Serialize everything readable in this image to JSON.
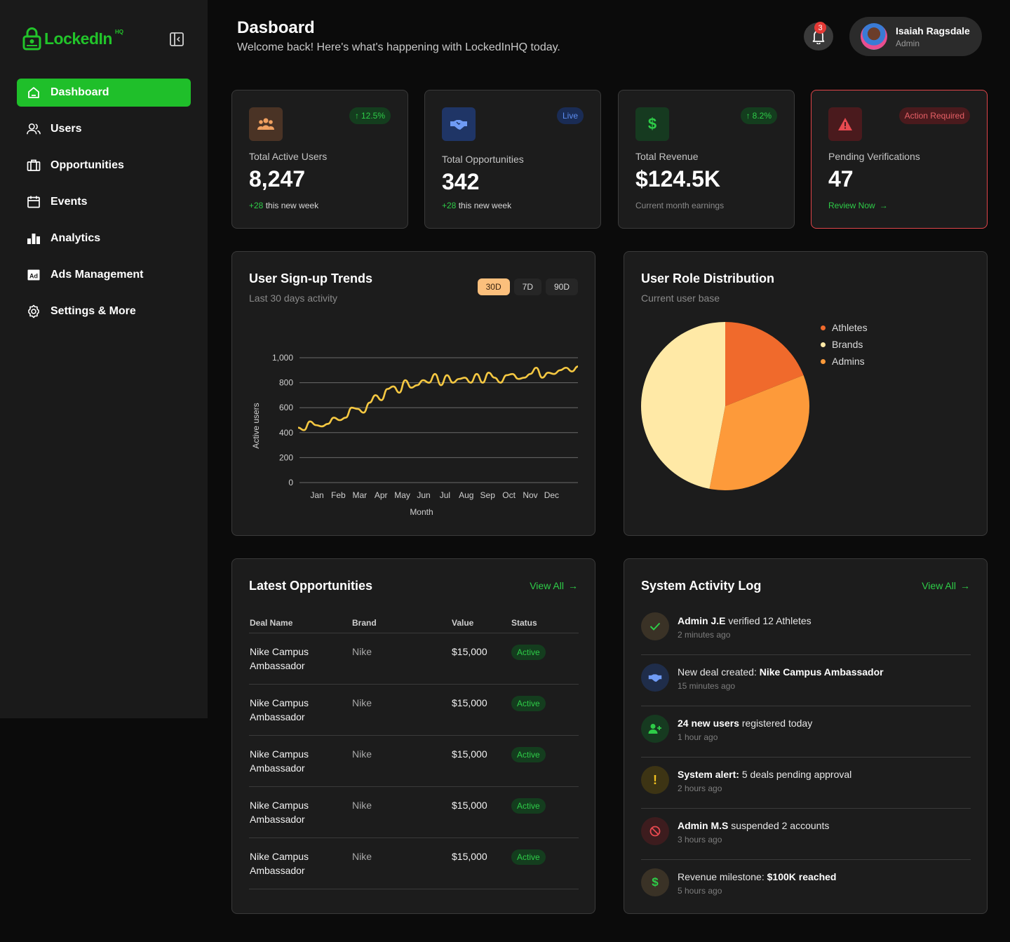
{
  "app": {
    "logo_text": "LockedIn",
    "logo_sup": "HQ"
  },
  "sidebar": {
    "items": [
      {
        "label": "Dashboard",
        "icon": "home-icon"
      },
      {
        "label": "Users",
        "icon": "users-icon"
      },
      {
        "label": "Opportunities",
        "icon": "briefcase-icon"
      },
      {
        "label": "Events",
        "icon": "calendar-icon"
      },
      {
        "label": "Analytics",
        "icon": "bar-chart-icon"
      },
      {
        "label": "Ads Management",
        "icon": "ad-icon"
      },
      {
        "label": "Settings & More",
        "icon": "gear-icon"
      }
    ]
  },
  "header": {
    "title": "Dasboard",
    "subtitle": "Welcome back! Here's what's happening with LockedInHQ today.",
    "notification_count": "3",
    "user_name": "Isaiah Ragsdale",
    "user_role": "Admin"
  },
  "stats": [
    {
      "label": "Total Active Users",
      "value": "8,247",
      "badge": "12.5%",
      "foot_highlight": "+28",
      "foot_text": " this new week"
    },
    {
      "label": "Total Opportunities",
      "value": "342",
      "badge": "Live",
      "foot_highlight": "+28",
      "foot_text": " this new week"
    },
    {
      "label": "Total Revenue",
      "value": "$124.5K",
      "badge": "8.2%",
      "foot_text": "Current month earnings"
    },
    {
      "label": "Pending Verifications",
      "value": "47",
      "badge": "Action Required",
      "foot_text": "Review Now"
    }
  ],
  "signup_panel": {
    "title": "User Sign-up Trends",
    "subtitle": "Last 30 days activity",
    "ranges": [
      "30D",
      "7D",
      "90D"
    ]
  },
  "role_panel": {
    "title": "User Role Distribution",
    "subtitle": "Current user base"
  },
  "opportunities_panel": {
    "title": "Latest Opportunities",
    "view_all": "View All",
    "columns": [
      "Deal Name",
      "Brand",
      "Value",
      "Status"
    ],
    "rows": [
      {
        "deal_line1": "Nike Campus",
        "deal_line2": "Ambassador",
        "brand": "Nike",
        "value": "$15,000",
        "status": "Active"
      },
      {
        "deal_line1": "Nike Campus",
        "deal_line2": "Ambassador",
        "brand": "Nike",
        "value": "$15,000",
        "status": "Active"
      },
      {
        "deal_line1": "Nike Campus",
        "deal_line2": "Ambassador",
        "brand": "Nike",
        "value": "$15,000",
        "status": "Active"
      },
      {
        "deal_line1": "Nike Campus",
        "deal_line2": "Ambassador",
        "brand": "Nike",
        "value": "$15,000",
        "status": "Active"
      },
      {
        "deal_line1": "Nike Campus",
        "deal_line2": "Ambassador",
        "brand": "Nike",
        "value": "$15,000",
        "status": "Active"
      }
    ]
  },
  "activity_panel": {
    "title": "System Activity Log",
    "view_all": "View All",
    "items": [
      {
        "pre": "",
        "bold": "Admin J.E",
        "post": " verified 12 Athletes",
        "time": "2 minutes ago",
        "icon": "check-icon"
      },
      {
        "pre": "New deal created: ",
        "bold": "Nike Campus Ambassador",
        "post": "",
        "time": "15 minutes ago",
        "icon": "handshake-icon"
      },
      {
        "pre": "",
        "bold": "24 new users",
        "post": " registered today",
        "time": "1 hour ago",
        "icon": "user-plus-icon"
      },
      {
        "pre": "",
        "bold": "System alert:",
        "post": " 5 deals pending approval",
        "time": "2 hours ago",
        "icon": "exclamation-icon"
      },
      {
        "pre": "",
        "bold": "Admin M.S",
        "post": " suspended 2 accounts",
        "time": "3 hours ago",
        "icon": "ban-icon"
      },
      {
        "pre": "Revenue milestone: ",
        "bold": "$100K reached",
        "post": "",
        "time": "5 hours ago",
        "icon": "dollar-icon"
      }
    ]
  },
  "colors": {
    "accent_green": "#1fbf2a",
    "line_yellow": "#f5c842",
    "pie_athletes": "#f06a2c",
    "pie_brands": "#ffe9a6",
    "pie_admins": "#fd9a3a"
  },
  "chart_data": [
    {
      "type": "line",
      "title": "",
      "xlabel": "Month",
      "ylabel": "Active users",
      "categories": [
        "Jan",
        "Feb",
        "Mar",
        "Apr",
        "May",
        "Jun",
        "Jul",
        "Aug",
        "Sep",
        "Oct",
        "Nov",
        "Dec"
      ],
      "yticks": [
        "0",
        "200",
        "400",
        "600",
        "800",
        "1,000"
      ],
      "ylim": [
        0,
        1000
      ],
      "x": [
        0,
        0.25,
        0.5,
        0.75,
        1,
        1.25,
        1.5,
        1.75,
        2,
        2.25,
        2.5,
        2.75,
        3,
        3.25,
        3.5,
        3.75,
        4,
        4.25,
        4.5,
        4.75,
        5,
        5.25,
        5.5,
        5.75,
        6,
        6.25,
        6.5,
        6.75,
        7,
        7.25,
        7.5,
        7.75,
        8,
        8.25,
        8.5,
        8.75,
        9,
        9.25,
        9.5,
        9.75,
        10,
        10.25,
        10.5,
        10.75,
        11,
        11.25,
        11.5,
        11.75
      ],
      "values": [
        440,
        420,
        490,
        460,
        450,
        470,
        520,
        500,
        520,
        600,
        590,
        560,
        640,
        700,
        660,
        750,
        770,
        720,
        820,
        760,
        780,
        820,
        800,
        870,
        780,
        860,
        800,
        830,
        840,
        800,
        870,
        800,
        880,
        840,
        800,
        860,
        870,
        830,
        840,
        870,
        920,
        840,
        880,
        870,
        900,
        920,
        890,
        930
      ],
      "series_name": "Active users"
    },
    {
      "type": "pie",
      "title": "User Role Distribution",
      "labels": [
        "Athletes",
        "Brands",
        "Admins"
      ],
      "values": [
        19,
        47,
        34
      ]
    }
  ]
}
